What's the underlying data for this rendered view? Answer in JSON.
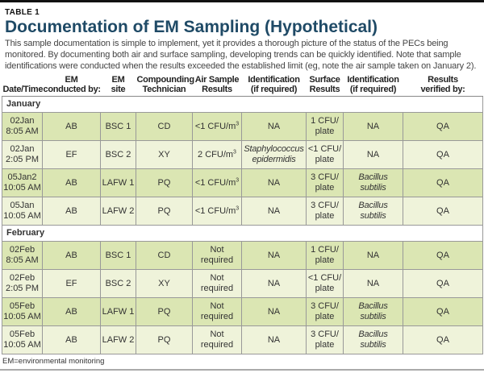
{
  "table_label": "TABLE 1",
  "title": "Documentation of EM Sampling (Hypothetical)",
  "description": "This sample documentation is simple to implement, yet it provides a thorough picture of the status of the PECs being monitored. By documenting both air and surface sampling, developing trends can be quickly identified. Note that sample identifications were conducted when the results exceeded the established limit (eg, note the air sample taken on January 2).",
  "headers": [
    [
      "",
      "Date/Time"
    ],
    [
      "EM",
      "conducted by:"
    ],
    [
      "EM",
      "site"
    ],
    [
      "Compounding",
      "Technician"
    ],
    [
      "Air Sample",
      "Results"
    ],
    [
      "Identification",
      "(if required)"
    ],
    [
      "Surface",
      "Results"
    ],
    [
      "Identification",
      "(if required)"
    ],
    [
      "Results",
      "verified by:"
    ]
  ],
  "groups": [
    {
      "month": "January",
      "rows": [
        [
          [
            "02Jan",
            "8:05 AM"
          ],
          [
            "AB"
          ],
          [
            "BSC 1"
          ],
          [
            "CD"
          ],
          [
            "<1 CFU/m",
            "3"
          ],
          [
            "NA"
          ],
          [
            "1 CFU/",
            "plate"
          ],
          [
            "NA"
          ],
          [
            "QA"
          ]
        ],
        [
          [
            "02Jan",
            "2:05 PM"
          ],
          [
            "EF"
          ],
          [
            "BSC 2"
          ],
          [
            "XY"
          ],
          [
            "2 CFU/m",
            "3"
          ],
          [
            "Staphylococcus",
            "epidermidis"
          ],
          [
            "<1 CFU/",
            "plate"
          ],
          [
            "NA"
          ],
          [
            "QA"
          ]
        ],
        [
          [
            "05Jan2",
            "10:05 AM"
          ],
          [
            "AB"
          ],
          [
            "LAFW 1"
          ],
          [
            "PQ"
          ],
          [
            "<1 CFU/m",
            "3"
          ],
          [
            "NA"
          ],
          [
            "3 CFU/",
            "plate"
          ],
          [
            "Bacillus",
            "subtilis"
          ],
          [
            "QA"
          ]
        ],
        [
          [
            "05Jan",
            "10:05 AM"
          ],
          [
            "AB"
          ],
          [
            "LAFW 2"
          ],
          [
            "PQ"
          ],
          [
            "<1 CFU/m",
            "3"
          ],
          [
            "NA"
          ],
          [
            "3 CFU/",
            "plate"
          ],
          [
            "Bacillus",
            "subtilis"
          ],
          [
            "QA"
          ]
        ]
      ]
    },
    {
      "month": "February",
      "rows": [
        [
          [
            "02Feb",
            "8:05 AM"
          ],
          [
            "AB"
          ],
          [
            "BSC 1"
          ],
          [
            "CD"
          ],
          [
            "Not",
            "required"
          ],
          [
            "NA"
          ],
          [
            "1 CFU/",
            "plate"
          ],
          [
            "NA"
          ],
          [
            "QA"
          ]
        ],
        [
          [
            "02Feb",
            "2:05 PM"
          ],
          [
            "EF"
          ],
          [
            "BSC 2"
          ],
          [
            "XY"
          ],
          [
            "Not",
            "required"
          ],
          [
            "NA"
          ],
          [
            "<1 CFU/",
            "plate"
          ],
          [
            "NA"
          ],
          [
            "QA"
          ]
        ],
        [
          [
            "05Feb",
            "10:05 AM"
          ],
          [
            "AB"
          ],
          [
            "LAFW 1"
          ],
          [
            "PQ"
          ],
          [
            "Not",
            "required"
          ],
          [
            "NA"
          ],
          [
            "3 CFU/",
            "plate"
          ],
          [
            "Bacillus",
            "subtilis"
          ],
          [
            "QA"
          ]
        ],
        [
          [
            "05Feb",
            "10:05 AM"
          ],
          [
            "AB"
          ],
          [
            "LAFW 2"
          ],
          [
            "PQ"
          ],
          [
            "Not",
            "required"
          ],
          [
            "NA"
          ],
          [
            "3 CFU/",
            "plate"
          ],
          [
            "Bacillus",
            "subtilis"
          ],
          [
            "QA"
          ]
        ]
      ]
    }
  ],
  "footnote": "EM=environmental monitoring",
  "colors": {
    "title": "#1f4a66",
    "row_dark": "#dbe6b3",
    "row_light": "#eff3da"
  }
}
